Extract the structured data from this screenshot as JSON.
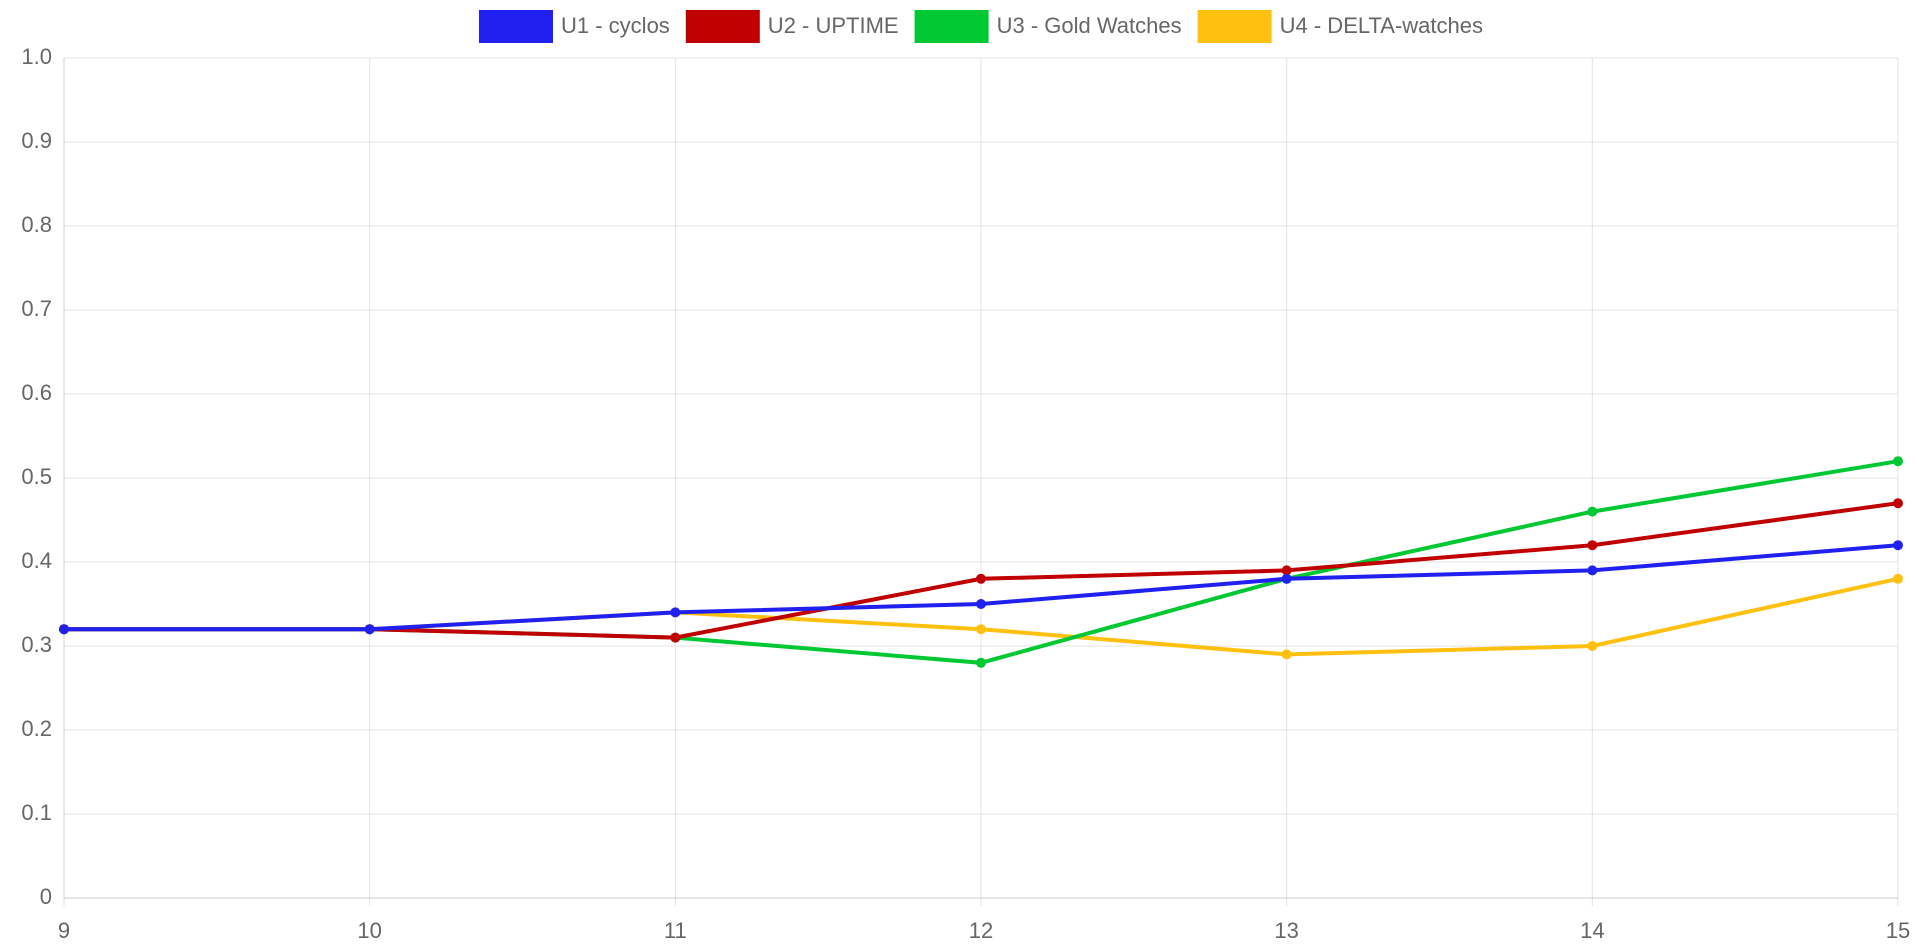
{
  "chart_data": {
    "type": "line",
    "x": [
      9,
      10,
      11,
      12,
      13,
      14,
      15
    ],
    "xlim": [
      9,
      15
    ],
    "xticks": [
      9,
      10,
      11,
      12,
      13,
      14,
      15
    ],
    "ylim": [
      0,
      1
    ],
    "yticks": [
      0,
      0.1,
      0.2,
      0.3,
      0.4,
      0.5,
      0.6,
      0.7,
      0.8,
      0.9,
      {
        "value": 1,
        "label": "1.0"
      }
    ],
    "grid": true,
    "legend": "top",
    "series": [
      {
        "name": "U1 - cyclos",
        "color": "#2020f0",
        "values": [
          0.32,
          0.32,
          0.34,
          0.35,
          0.38,
          0.39,
          0.42
        ]
      },
      {
        "name": "U2 - UPTIME",
        "color": "#c00000",
        "values": [
          0.32,
          0.32,
          0.31,
          0.38,
          0.39,
          0.42,
          0.47
        ]
      },
      {
        "name": "U3 - Gold Watches",
        "color": "#00c832",
        "values": [
          0.32,
          0.32,
          0.31,
          0.28,
          0.38,
          0.46,
          0.52
        ]
      },
      {
        "name": "U4 - DELTA-watches",
        "color": "#ffc010",
        "values": [
          0.32,
          0.32,
          0.34,
          0.32,
          0.29,
          0.3,
          0.38
        ]
      }
    ]
  }
}
